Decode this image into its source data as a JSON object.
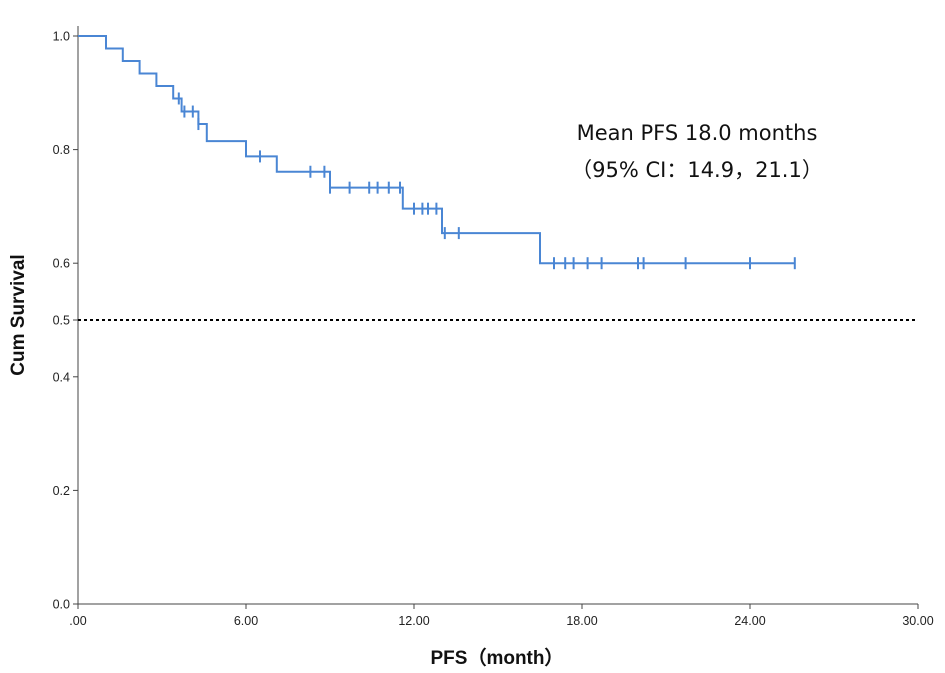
{
  "chart_data": {
    "type": "line",
    "subtype": "kaplan-meier",
    "title": "",
    "xlabel": "PFS（month）",
    "ylabel": "Cum Survival",
    "xlim": [
      0,
      30
    ],
    "ylim": [
      0,
      1.05
    ],
    "xticks": [
      0,
      6,
      12,
      18,
      24,
      30
    ],
    "xtick_labels": [
      ".00",
      "6.00",
      "12.00",
      "18.00",
      "24.00",
      "30.00"
    ],
    "yticks": [
      0,
      0.2,
      0.4,
      0.5,
      0.6,
      0.8,
      1.0
    ],
    "ytick_labels": [
      "0.0",
      "0.2",
      "0.4",
      "0.5",
      "0.6",
      "0.8",
      "1.0"
    ],
    "line_color": "#4a86d4",
    "reference_line": {
      "y": 0.5,
      "style": "dotted",
      "color": "#000000"
    },
    "steps": [
      {
        "x": 0.0,
        "y": 1.0
      },
      {
        "x": 1.0,
        "y": 0.978
      },
      {
        "x": 1.6,
        "y": 0.956
      },
      {
        "x": 2.2,
        "y": 0.934
      },
      {
        "x": 2.8,
        "y": 0.912
      },
      {
        "x": 3.4,
        "y": 0.89
      },
      {
        "x": 3.7,
        "y": 0.867
      },
      {
        "x": 4.3,
        "y": 0.845
      },
      {
        "x": 4.6,
        "y": 0.815
      },
      {
        "x": 6.0,
        "y": 0.788
      },
      {
        "x": 7.1,
        "y": 0.761
      },
      {
        "x": 9.0,
        "y": 0.733
      },
      {
        "x": 11.6,
        "y": 0.696
      },
      {
        "x": 13.0,
        "y": 0.653
      },
      {
        "x": 16.5,
        "y": 0.6
      }
    ],
    "end_x": 25.6,
    "censored": [
      3.6,
      3.8,
      4.1,
      4.3,
      6.5,
      8.3,
      8.8,
      9.0,
      9.7,
      10.4,
      10.7,
      11.1,
      11.5,
      12.0,
      12.3,
      12.5,
      12.8,
      13.1,
      13.6,
      17.0,
      17.4,
      17.7,
      18.2,
      18.7,
      20.0,
      20.2,
      21.7,
      24.0,
      25.6
    ],
    "annotations": [
      "Mean PFS 18.0 months",
      "（95% CI：14.9，21.1）"
    ]
  }
}
